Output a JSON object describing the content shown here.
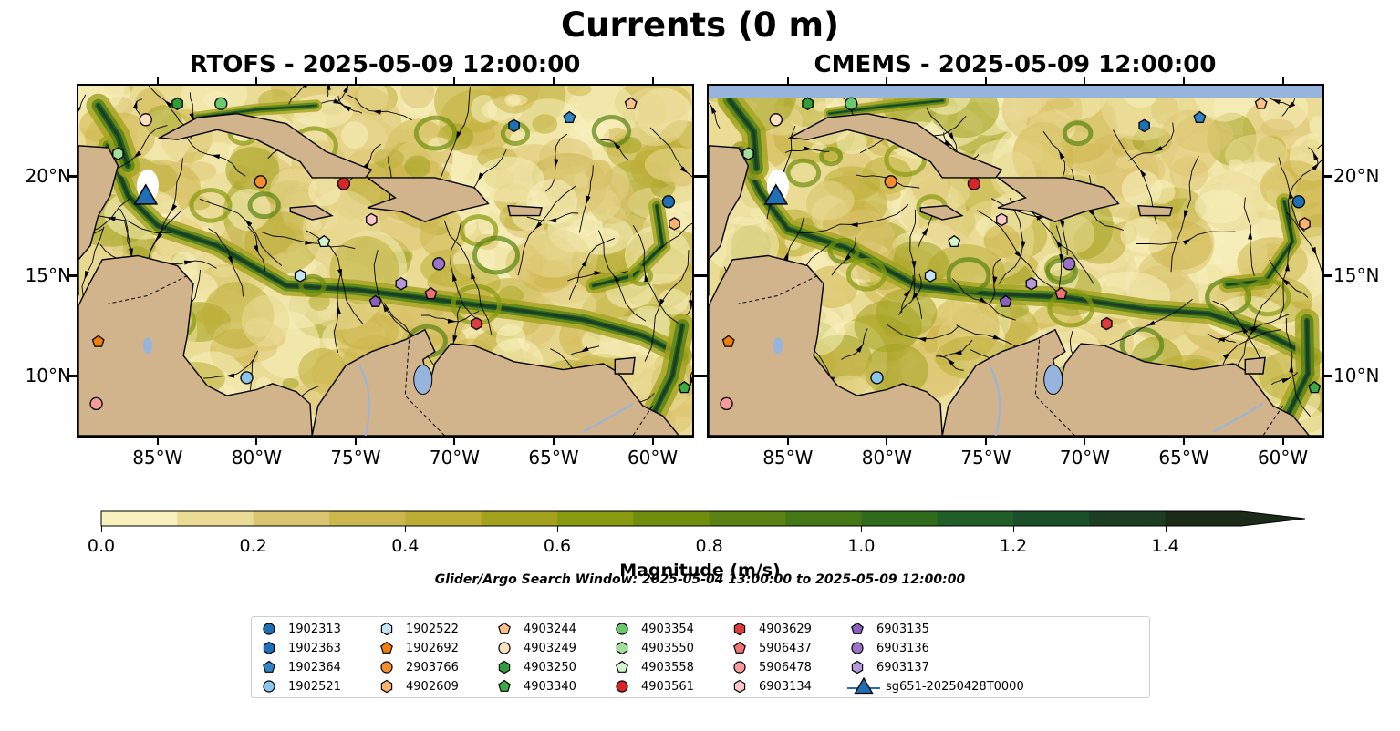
{
  "figure": {
    "suptitle": "Currents (0 m)",
    "search_window": "Glider/Argo Search Window: 2025-05-04 13:00:00 to 2025-05-09 12:00:00"
  },
  "panels": [
    {
      "title": "RTOFS - 2025-05-09 12:00:00",
      "model": "RTOFS"
    },
    {
      "title": "CMEMS - 2025-05-09 12:00:00",
      "model": "CMEMS"
    }
  ],
  "axes": {
    "lon_ticks": [
      "85°W",
      "80°W",
      "75°W",
      "70°W",
      "65°W",
      "60°W"
    ],
    "lat_ticks": [
      "20°N",
      "15°N",
      "10°N"
    ],
    "lon_range": [
      -89,
      -58
    ],
    "lat_range": [
      7,
      24.5
    ]
  },
  "colorbar": {
    "label": "Magnitude (m/s)",
    "ticks": [
      "0.0",
      "0.2",
      "0.4",
      "0.6",
      "0.8",
      "1.0",
      "1.2",
      "1.4"
    ],
    "range": [
      0,
      1.5
    ],
    "extend": "max",
    "colors": [
      "#f7f1bd",
      "#eadb95",
      "#dcc571",
      "#cdb64c",
      "#bcad34",
      "#a3a21f",
      "#889a0f",
      "#6f8e0e",
      "#5a8313",
      "#447815",
      "#2f6b1a",
      "#1f5e27",
      "#1a4f2a",
      "#1c3d22",
      "#1b2b18"
    ]
  },
  "colors": {
    "land": "#d2b48c",
    "water": "#96b4dc",
    "glider": "#1f6fb4"
  },
  "legend": {
    "items": [
      {
        "label": "1902313",
        "marker": "circle",
        "color": "#1f6fb4"
      },
      {
        "label": "1902363",
        "marker": "hexagon",
        "color": "#1f6fb4"
      },
      {
        "label": "1902364",
        "marker": "pentagon",
        "color": "#2f84c8"
      },
      {
        "label": "1902521",
        "marker": "circle",
        "color": "#8cc5ea"
      },
      {
        "label": "1902522",
        "marker": "hexagon",
        "color": "#c7e4f7"
      },
      {
        "label": "1902692",
        "marker": "pentagon",
        "color": "#f27d0c"
      },
      {
        "label": "2903766",
        "marker": "circle",
        "color": "#f58d2c"
      },
      {
        "label": "4902609",
        "marker": "hexagon",
        "color": "#fbb26c"
      },
      {
        "label": "4903244",
        "marker": "pentagon",
        "color": "#fcc08a"
      },
      {
        "label": "4903249",
        "marker": "circle",
        "color": "#fde0c0"
      },
      {
        "label": "4903250",
        "marker": "hexagon",
        "color": "#2f9e3a"
      },
      {
        "label": "4903340",
        "marker": "pentagon",
        "color": "#3caa45"
      },
      {
        "label": "4903354",
        "marker": "circle",
        "color": "#6bc86a"
      },
      {
        "label": "4903550",
        "marker": "hexagon",
        "color": "#a3df9a"
      },
      {
        "label": "4903558",
        "marker": "pentagon",
        "color": "#d4f5cd"
      },
      {
        "label": "4903561",
        "marker": "circle",
        "color": "#d62728"
      },
      {
        "label": "4903629",
        "marker": "hexagon",
        "color": "#de3c3c"
      },
      {
        "label": "5906437",
        "marker": "pentagon",
        "color": "#f07272"
      },
      {
        "label": "5906478",
        "marker": "circle",
        "color": "#f59b9b"
      },
      {
        "label": "6903134",
        "marker": "hexagon",
        "color": "#fbc6c6"
      },
      {
        "label": "6903135",
        "marker": "pentagon",
        "color": "#8a5fbf"
      },
      {
        "label": "6903136",
        "marker": "circle",
        "color": "#9a72c9"
      },
      {
        "label": "6903137",
        "marker": "hexagon",
        "color": "#b699da"
      },
      {
        "label": "sg651-20250428T0000",
        "marker": "triangle",
        "color": "#1f6fb4"
      }
    ]
  },
  "floats": {
    "rtofs": [
      {
        "id": "1902313",
        "lon": -59.2,
        "lat": 18.7
      },
      {
        "id": "1902363",
        "lon": -67.0,
        "lat": 22.5
      },
      {
        "id": "1902364",
        "lon": -64.2,
        "lat": 22.9
      },
      {
        "id": "1902521",
        "lon": -80.5,
        "lat": 9.9
      },
      {
        "id": "1902522",
        "lon": -77.8,
        "lat": 15.0
      },
      {
        "id": "1902692",
        "lon": -88.0,
        "lat": 11.7
      },
      {
        "id": "2903766",
        "lon": -79.8,
        "lat": 19.7
      },
      {
        "id": "4902609",
        "lon": -58.9,
        "lat": 17.6
      },
      {
        "id": "4903244",
        "lon": -61.1,
        "lat": 23.6
      },
      {
        "id": "4903249",
        "lon": -85.6,
        "lat": 22.8
      },
      {
        "id": "4903250",
        "lon": -84.0,
        "lat": 23.6
      },
      {
        "id": "4903340",
        "lon": -58.4,
        "lat": 9.4
      },
      {
        "id": "4903354",
        "lon": -81.8,
        "lat": 23.6
      },
      {
        "id": "4903550",
        "lon": -87.0,
        "lat": 21.1
      },
      {
        "id": "4903558",
        "lon": -76.6,
        "lat": 16.7
      },
      {
        "id": "4903561",
        "lon": -75.6,
        "lat": 19.6
      },
      {
        "id": "4903629",
        "lon": -68.9,
        "lat": 12.6
      },
      {
        "id": "5906437",
        "lon": -71.2,
        "lat": 14.1
      },
      {
        "id": "5906478",
        "lon": -88.1,
        "lat": 8.6
      },
      {
        "id": "6903134",
        "lon": -74.2,
        "lat": 17.8
      },
      {
        "id": "6903135",
        "lon": -74.0,
        "lat": 13.7
      },
      {
        "id": "6903136",
        "lon": -70.8,
        "lat": 15.6
      },
      {
        "id": "6903137",
        "lon": -72.7,
        "lat": 14.6
      }
    ],
    "glider": {
      "id": "sg651-20250428T0000",
      "lon": -85.6,
      "lat": 18.9
    }
  }
}
